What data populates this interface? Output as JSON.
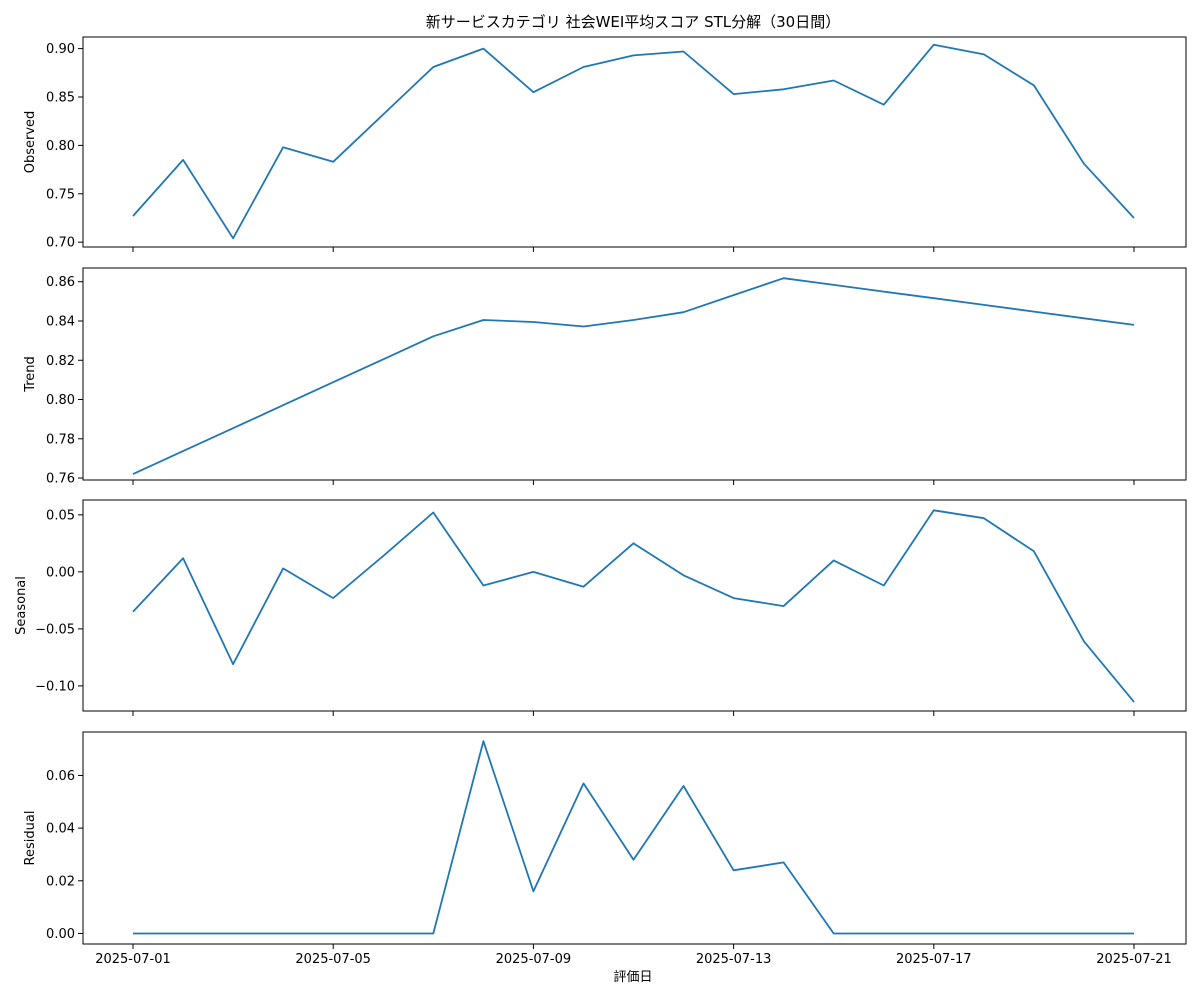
{
  "chart_data": {
    "type": "line",
    "title": "新サービスカテゴリ 社会WEI平均スコア STL分解（30日間）",
    "xlabel": "評価日",
    "x": [
      "2025-07-01",
      "2025-07-02",
      "2025-07-03",
      "2025-07-04",
      "2025-07-05",
      "2025-07-06",
      "2025-07-07",
      "2025-07-08",
      "2025-07-09",
      "2025-07-10",
      "2025-07-11",
      "2025-07-12",
      "2025-07-13",
      "2025-07-14",
      "2025-07-15",
      "2025-07-16",
      "2025-07-17",
      "2025-07-18",
      "2025-07-19",
      "2025-07-20",
      "2025-07-21"
    ],
    "x_ticks": [
      "2025-07-01",
      "2025-07-05",
      "2025-07-09",
      "2025-07-13",
      "2025-07-17",
      "2025-07-21"
    ],
    "line_color": "#1f77b4",
    "grid": false,
    "panels": [
      {
        "ylabel": "Observed",
        "ylim": [
          0.695,
          0.912
        ],
        "yticks": [
          "0.70",
          "0.75",
          "0.80",
          "0.85",
          "0.90"
        ],
        "ytick_values": [
          0.7,
          0.75,
          0.8,
          0.85,
          0.9
        ],
        "values": [
          0.727,
          0.785,
          0.704,
          0.798,
          0.783,
          0.832,
          0.881,
          0.9,
          0.855,
          0.881,
          0.893,
          0.897,
          0.853,
          0.858,
          0.867,
          0.842,
          0.904,
          0.894,
          0.862,
          0.781,
          0.725
        ]
      },
      {
        "ylabel": "Trend",
        "ylim": [
          0.759,
          0.867
        ],
        "yticks": [
          "0.76",
          "0.78",
          "0.80",
          "0.82",
          "0.84",
          "0.86"
        ],
        "ytick_values": [
          0.76,
          0.78,
          0.8,
          0.82,
          0.84,
          0.86
        ],
        "values": [
          0.762,
          0.7737,
          0.7854,
          0.7971,
          0.8088,
          0.8205,
          0.8322,
          0.8405,
          0.8395,
          0.8372,
          0.8405,
          0.8445,
          0.8532,
          0.8618,
          0.8584,
          0.855,
          0.8516,
          0.8482,
          0.8448,
          0.8414,
          0.838
        ]
      },
      {
        "ylabel": "Seasonal",
        "ylim": [
          -0.122,
          0.063
        ],
        "yticks": [
          "0.05",
          "0.00",
          "−0.05",
          "−0.10"
        ],
        "ytick_values": [
          0.05,
          0.0,
          -0.05,
          -0.1
        ],
        "values": [
          -0.035,
          0.012,
          -0.081,
          0.003,
          -0.023,
          0.014,
          0.052,
          -0.012,
          0.0,
          -0.013,
          0.025,
          -0.003,
          -0.023,
          -0.03,
          0.01,
          -0.012,
          0.054,
          0.047,
          0.018,
          -0.061,
          -0.114
        ]
      },
      {
        "ylabel": "Residual",
        "ylim": [
          -0.004,
          0.0765
        ],
        "yticks": [
          "0.00",
          "0.02",
          "0.04",
          "0.06"
        ],
        "ytick_values": [
          0.0,
          0.02,
          0.04,
          0.06
        ],
        "values": [
          0,
          0,
          0,
          0,
          0,
          0,
          0,
          0.073,
          0.016,
          0.057,
          0.028,
          0.056,
          0.024,
          0.027,
          0,
          0,
          0,
          0,
          0,
          0,
          0
        ]
      }
    ]
  }
}
